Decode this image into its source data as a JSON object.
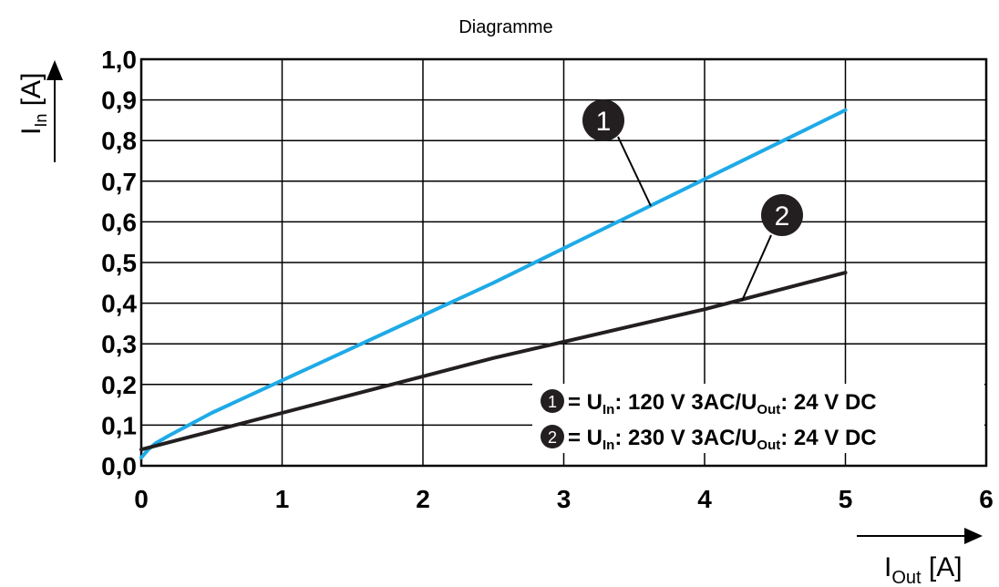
{
  "chart_data": {
    "type": "line",
    "title": "Diagramme",
    "xlabel": {
      "main": "I",
      "sub": "Out",
      "unit": " [A]"
    },
    "ylabel": {
      "main": "I",
      "sub": "In",
      "unit": " [A]"
    },
    "xlim": [
      0,
      6
    ],
    "ylim": [
      0,
      1.0
    ],
    "x_ticks": [
      "0",
      "1",
      "2",
      "3",
      "4",
      "5",
      "6"
    ],
    "y_ticks": [
      "0,0",
      "0,1",
      "0,2",
      "0,3",
      "0,4",
      "0,5",
      "0,6",
      "0,7",
      "0,8",
      "0,9",
      "1,0"
    ],
    "grid": true,
    "series": [
      {
        "name": "1",
        "color": "#1eaae6",
        "x": [
          0,
          0.05,
          0.1,
          0.2,
          0.5,
          1,
          1.5,
          2,
          2.5,
          3,
          3.5,
          4,
          4.5,
          5
        ],
        "y": [
          0.02,
          0.04,
          0.055,
          0.075,
          0.13,
          0.21,
          0.29,
          0.37,
          0.45,
          0.535,
          0.62,
          0.705,
          0.79,
          0.875
        ]
      },
      {
        "name": "2",
        "color": "#231f20",
        "x": [
          0,
          0.5,
          1,
          1.5,
          2,
          2.5,
          3,
          3.5,
          4,
          4.5,
          5
        ],
        "y": [
          0.04,
          0.085,
          0.13,
          0.175,
          0.22,
          0.265,
          0.305,
          0.345,
          0.385,
          0.43,
          0.475
        ]
      }
    ],
    "legend": {
      "position": "bottom-right",
      "entries": [
        {
          "marker": "1",
          "eq": "= U",
          "in_sub": "In",
          "mid": ": 120 V 3AC/U",
          "out_sub": "Out",
          "tail": ": 24 V DC"
        },
        {
          "marker": "2",
          "eq": "= U",
          "in_sub": "In",
          "mid": ": 230 V 3AC/U",
          "out_sub": "Out",
          "tail": ": 24 V DC"
        }
      ]
    }
  }
}
